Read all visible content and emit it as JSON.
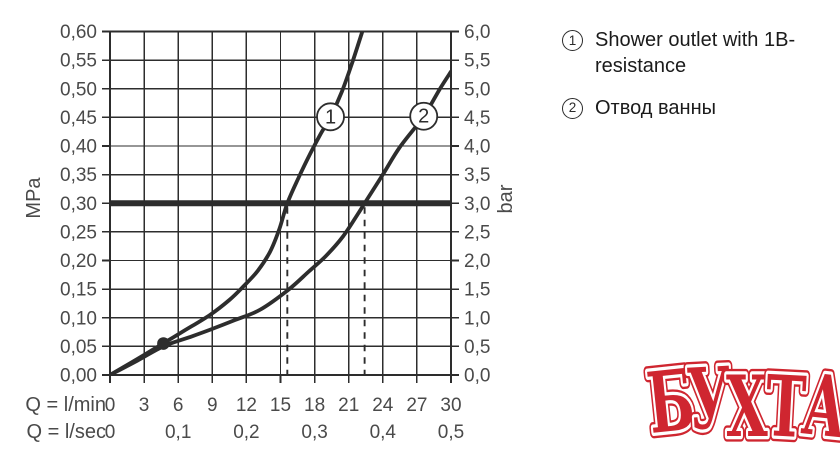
{
  "colors": {
    "line": "#2d2d2d",
    "label": "#4a4a4a",
    "legend_text": "#1b1b1b",
    "watermark_red": "#cf2630",
    "background": "#ffffff"
  },
  "chart_data": {
    "type": "line",
    "title": "",
    "grid": true,
    "x_axis": {
      "primary": {
        "label": "Q = l/min",
        "range": [
          0,
          30
        ],
        "step": 3,
        "ticks": [
          "0",
          "3",
          "6",
          "9",
          "12",
          "15",
          "18",
          "21",
          "24",
          "27",
          "30"
        ]
      },
      "secondary": {
        "label": "Q = l/sec",
        "ticks": [
          {
            "x": 0,
            "text": "0"
          },
          {
            "x": 6,
            "text": "0,1"
          },
          {
            "x": 12,
            "text": "0,2"
          },
          {
            "x": 18,
            "text": "0,3"
          },
          {
            "x": 24,
            "text": "0,4"
          },
          {
            "x": 30,
            "text": "0,5"
          }
        ]
      }
    },
    "y_axis": {
      "left": {
        "label": "MPa",
        "range": [
          0,
          0.6
        ],
        "step": 0.05,
        "ticks": [
          "0,60",
          "0,55",
          "0,50",
          "0,45",
          "0,40",
          "0,35",
          "0,30",
          "0,25",
          "0,20",
          "0,15",
          "0,10",
          "0,05",
          "0,00"
        ]
      },
      "right": {
        "label": "bar",
        "range": [
          0,
          6
        ],
        "step": 0.5,
        "ticks": [
          "6,0",
          "5,5",
          "5,0",
          "4,5",
          "4,0",
          "3,5",
          "3,0",
          "2,5",
          "2,0",
          "1,5",
          "1,0",
          "0,5",
          "0,0"
        ]
      }
    },
    "reference_line": {
      "y_mpa": 0.3,
      "y_bar": 3.0
    },
    "dashed_lines_x": [
      15.6,
      22.4
    ],
    "point_marker": {
      "x": 4.7,
      "y": 0.055
    },
    "series": [
      {
        "name": "1",
        "badge_at": {
          "x": 19.4,
          "y": 0.451
        },
        "points": [
          [
            0,
            0
          ],
          [
            2.4,
            0.028
          ],
          [
            4.75,
            0.056
          ],
          [
            6.5,
            0.077
          ],
          [
            8.8,
            0.105
          ],
          [
            10.5,
            0.131
          ],
          [
            11.7,
            0.154
          ],
          [
            13,
            0.182
          ],
          [
            14.1,
            0.216
          ],
          [
            14.9,
            0.255
          ],
          [
            15.6,
            0.3
          ],
          [
            16.6,
            0.345
          ],
          [
            17.6,
            0.386
          ],
          [
            18.5,
            0.42
          ],
          [
            19.4,
            0.451
          ],
          [
            20.4,
            0.495
          ],
          [
            21.3,
            0.545
          ],
          [
            22.2,
            0.6
          ]
        ]
      },
      {
        "name": "2",
        "badge_at": {
          "x": 27.6,
          "y": 0.452
        },
        "points": [
          [
            0,
            0
          ],
          [
            2.4,
            0.025
          ],
          [
            4.7,
            0.05
          ],
          [
            7,
            0.066
          ],
          [
            8.8,
            0.079
          ],
          [
            11,
            0.096
          ],
          [
            13.2,
            0.114
          ],
          [
            15.7,
            0.149
          ],
          [
            17.5,
            0.181
          ],
          [
            19,
            0.208
          ],
          [
            20.5,
            0.242
          ],
          [
            21.8,
            0.281
          ],
          [
            22.4,
            0.3
          ],
          [
            24,
            0.35
          ],
          [
            25.5,
            0.398
          ],
          [
            27.6,
            0.452
          ],
          [
            29,
            0.499
          ],
          [
            30,
            0.53
          ]
        ]
      }
    ]
  },
  "legend": {
    "items": [
      {
        "number": "1",
        "label": "Shower outlet with 1B-resistance"
      },
      {
        "number": "2",
        "label": "Отвод ванны"
      }
    ]
  },
  "watermark": {
    "text": "БУХТА"
  }
}
